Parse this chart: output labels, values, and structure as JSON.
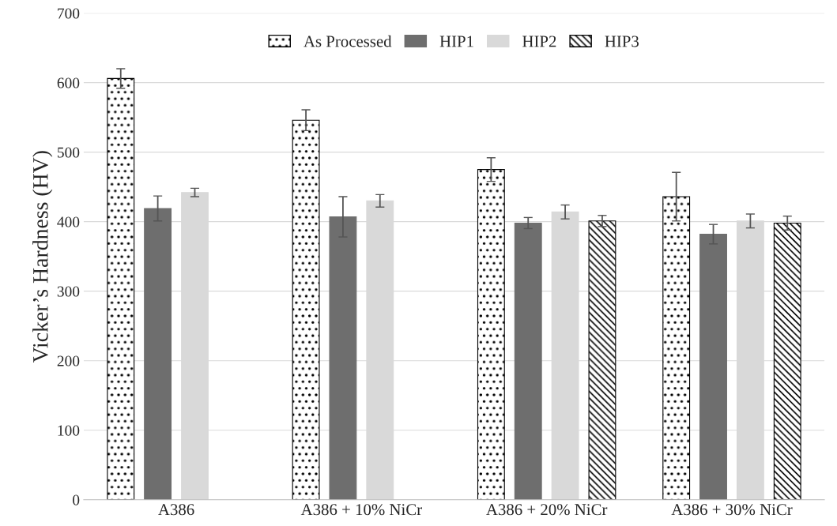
{
  "chart_data": {
    "type": "bar",
    "ylabel": "Vicker’s Hardness (HV)",
    "categories": [
      "A386",
      "A386 + 10% NiCr",
      "A386 + 20% NiCr",
      "A386 + 30% NiCr"
    ],
    "series": [
      {
        "name": "As Processed",
        "color": "#000000",
        "values": [
          606,
          546,
          475,
          436
        ],
        "errors": [
          14,
          15,
          17,
          35
        ]
      },
      {
        "name": "HIP1",
        "color": "#6e6e6e",
        "values": [
          419,
          407,
          398,
          382
        ],
        "errors": [
          18,
          29,
          8,
          14
        ]
      },
      {
        "name": "HIP2",
        "color": "#d9d9d9",
        "values": [
          442,
          430,
          414,
          401
        ],
        "errors": [
          6,
          9,
          10,
          10
        ]
      },
      {
        "name": "HIP3",
        "color": "#000000",
        "values": [
          null,
          null,
          401,
          398
        ],
        "errors": [
          null,
          null,
          8,
          10
        ]
      }
    ],
    "ylim": [
      0,
      700
    ],
    "yticks": [
      0,
      100,
      200,
      300,
      400,
      500,
      600,
      700
    ],
    "grid": "y",
    "legend": "top"
  }
}
